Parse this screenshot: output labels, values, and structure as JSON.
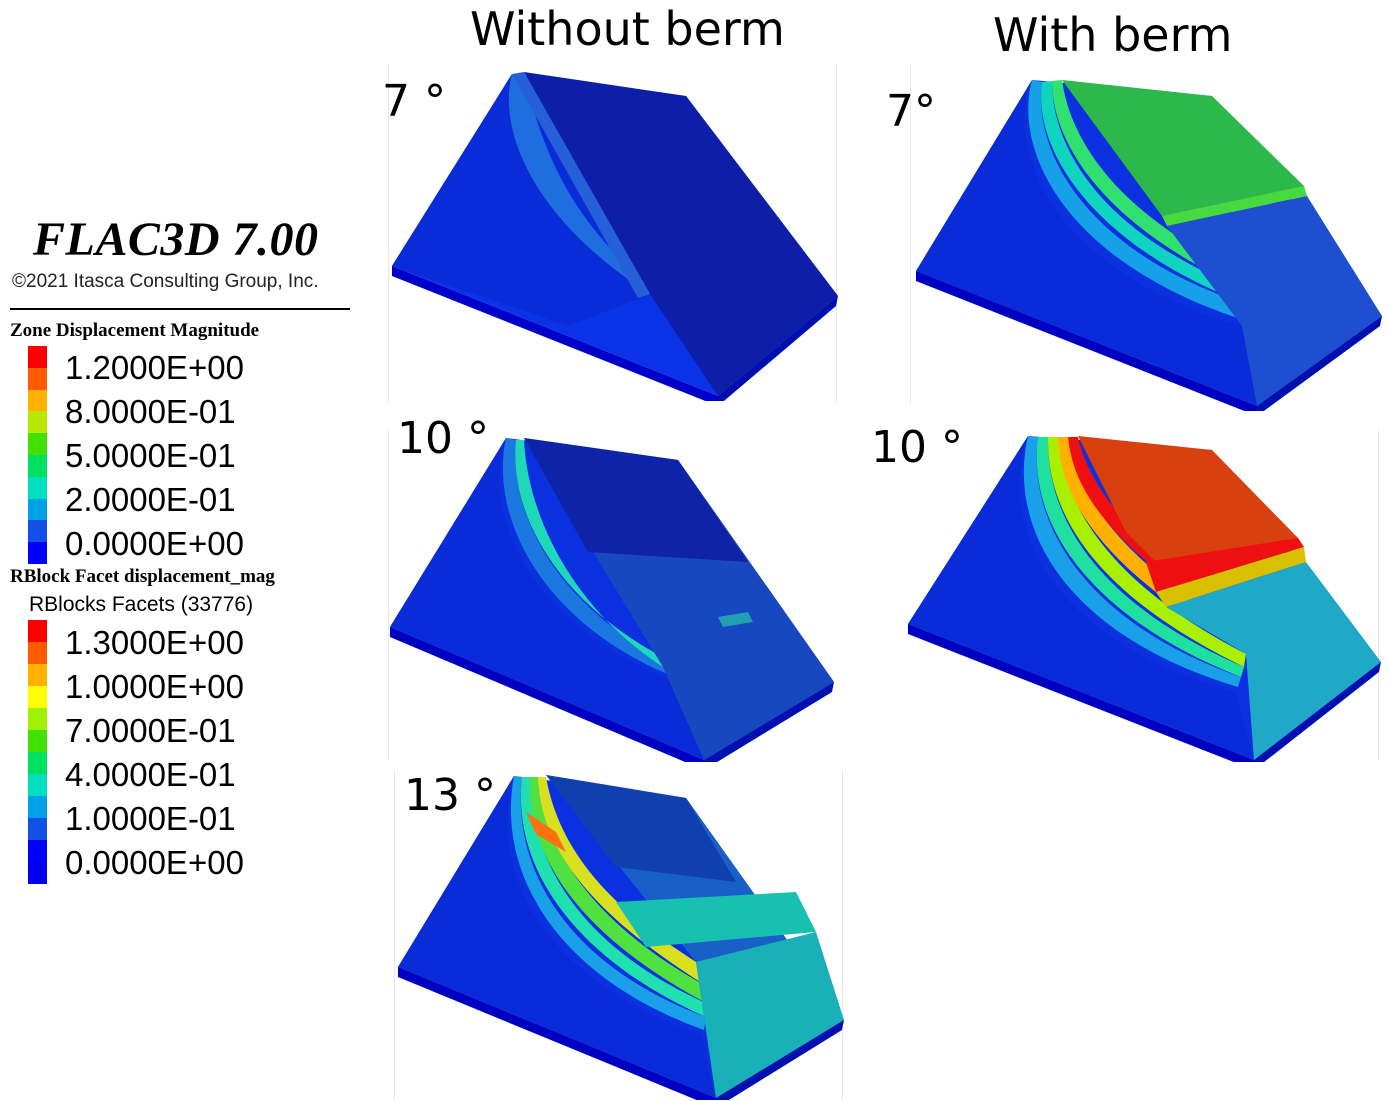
{
  "headers": {
    "without": "Without berm",
    "with": "With berm"
  },
  "legend": {
    "software": "FLAC3D 7.00",
    "copyright": "©2021 Itasca Consulting Group, Inc.",
    "zone": {
      "title": "Zone Displacement Magnitude",
      "ticks": [
        "1.2000E+00",
        "8.0000E-01",
        "5.0000E-01",
        "2.0000E-01",
        "0.0000E+00"
      ],
      "colors": [
        "#ff0000",
        "#ff5a00",
        "#ffb000",
        "#b8e800",
        "#40e000",
        "#00e060",
        "#00e0c0",
        "#00a0e8",
        "#1050e8",
        "#0000ff"
      ]
    },
    "rblock": {
      "title": "RBlock Facet displacement_mag",
      "subtitle": "RBlocks Facets (33776)",
      "ticks": [
        "1.3000E+00",
        "1.0000E+00",
        "7.0000E-01",
        "4.0000E-01",
        "1.0000E-01",
        "0.0000E+00"
      ],
      "colors": [
        "#ff0000",
        "#ff5a00",
        "#ffb000",
        "#ffff00",
        "#a0f000",
        "#40e000",
        "#00e060",
        "#00e0c0",
        "#00a0e8",
        "#1050e8",
        "#0000ff",
        "#0000ee"
      ]
    }
  },
  "panels": [
    {
      "id": "no-berm-7",
      "angle": "7 °",
      "berm": false
    },
    {
      "id": "berm-7",
      "angle": "7°",
      "berm": true
    },
    {
      "id": "no-berm-10",
      "angle": "10 °",
      "berm": false
    },
    {
      "id": "berm-10",
      "angle": "10 °",
      "berm": true
    },
    {
      "id": "no-berm-13",
      "angle": "13 °",
      "berm": false
    }
  ]
}
